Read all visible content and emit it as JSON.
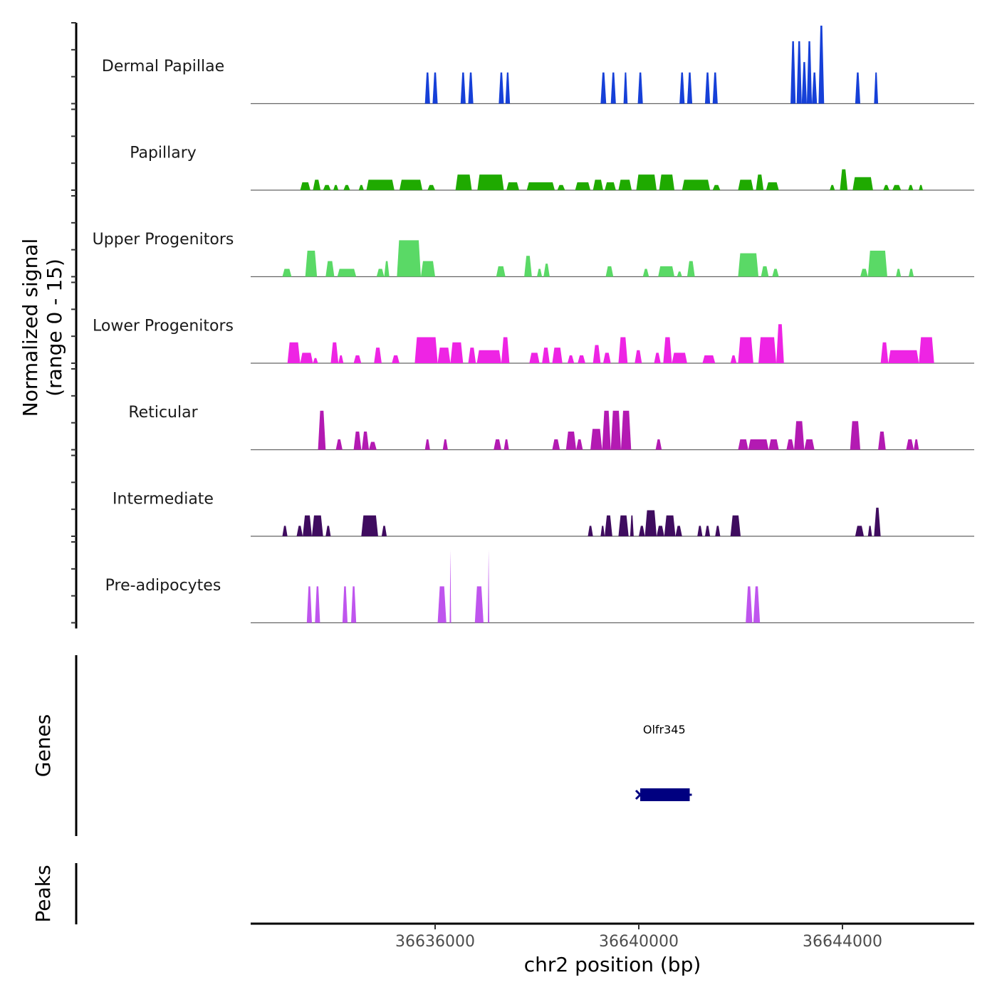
{
  "chart_data": {
    "type": "area",
    "title": "",
    "ylabel": "Normalized signal\n(range 0 - 15)",
    "ylabel_lines": [
      "Normalized signal",
      "(range 0 - 15)"
    ],
    "xlabel": "chr2 position (bp)",
    "chromosome": "chr2",
    "xlim": [
      36632380,
      36646590
    ],
    "ylim": [
      0,
      15
    ],
    "x_ticks": [
      36636000,
      36640000,
      36644000
    ],
    "x_tick_labels": [
      "36636000",
      "36640000",
      "36644000"
    ],
    "y_ticks_per_track": [
      0,
      5,
      10,
      15
    ],
    "grid": false,
    "legend": "none",
    "tracks": [
      {
        "name": "Dermal Papillae",
        "color": "#1640d8",
        "peaks": [
          [
            36635800,
            36635900,
            6
          ],
          [
            36635950,
            36636050,
            6
          ],
          [
            36636500,
            36636600,
            6
          ],
          [
            36636650,
            36636750,
            6
          ],
          [
            36637250,
            36637350,
            6
          ],
          [
            36637380,
            36637470,
            6
          ],
          [
            36639250,
            36639360,
            6
          ],
          [
            36639450,
            36639550,
            6
          ],
          [
            36639700,
            36639780,
            6
          ],
          [
            36639980,
            36640080,
            6
          ],
          [
            36640800,
            36640900,
            6
          ],
          [
            36640950,
            36641050,
            6
          ],
          [
            36641300,
            36641400,
            6
          ],
          [
            36641450,
            36641550,
            6
          ],
          [
            36642980,
            36643080,
            12
          ],
          [
            36643100,
            36643200,
            12
          ],
          [
            36643200,
            36643300,
            8
          ],
          [
            36643300,
            36643400,
            12
          ],
          [
            36643400,
            36643500,
            6
          ],
          [
            36643530,
            36643640,
            15
          ],
          [
            36644250,
            36644350,
            6
          ],
          [
            36644620,
            36644700,
            6
          ]
        ]
      },
      {
        "name": "Papillary",
        "color": "#1faa00",
        "peaks": [
          [
            36633350,
            36633550,
            1.5
          ],
          [
            36633600,
            36633750,
            2
          ],
          [
            36633800,
            36633950,
            1
          ],
          [
            36634000,
            36634100,
            1
          ],
          [
            36634200,
            36634330,
            1
          ],
          [
            36634500,
            36634600,
            1
          ],
          [
            36634650,
            36635200,
            2
          ],
          [
            36635300,
            36635750,
            2
          ],
          [
            36635850,
            36636000,
            1
          ],
          [
            36636400,
            36636720,
            3
          ],
          [
            36636830,
            36637350,
            3
          ],
          [
            36637400,
            36637650,
            1.5
          ],
          [
            36637800,
            36638350,
            1.5
          ],
          [
            36638400,
            36638550,
            1
          ],
          [
            36638750,
            36639050,
            1.5
          ],
          [
            36639100,
            36639300,
            2
          ],
          [
            36639330,
            36639550,
            1.5
          ],
          [
            36639600,
            36639860,
            2
          ],
          [
            36639950,
            36640350,
            3
          ],
          [
            36640400,
            36640700,
            3
          ],
          [
            36640850,
            36641400,
            2
          ],
          [
            36641450,
            36641600,
            1
          ],
          [
            36641950,
            36642250,
            2
          ],
          [
            36642300,
            36642450,
            3
          ],
          [
            36642500,
            36642750,
            1.5
          ],
          [
            36643750,
            36643850,
            1
          ],
          [
            36643950,
            36644100,
            4
          ],
          [
            36644200,
            36644600,
            2.5
          ],
          [
            36644800,
            36644920,
            1
          ],
          [
            36644980,
            36645150,
            1
          ],
          [
            36645290,
            36645390,
            1
          ],
          [
            36645500,
            36645580,
            1
          ]
        ]
      },
      {
        "name": "Upper Progenitors",
        "color": "#5ad966",
        "peaks": [
          [
            36633000,
            36633180,
            1.5
          ],
          [
            36633450,
            36633680,
            5
          ],
          [
            36633850,
            36634020,
            3
          ],
          [
            36634080,
            36634450,
            1.5
          ],
          [
            36634850,
            36635000,
            1.5
          ],
          [
            36635000,
            36635100,
            3
          ],
          [
            36635250,
            36635720,
            7
          ],
          [
            36635720,
            36636000,
            3
          ],
          [
            36637200,
            36637380,
            2
          ],
          [
            36637750,
            36637900,
            4
          ],
          [
            36638000,
            36638100,
            1.5
          ],
          [
            36638130,
            36638250,
            2.5
          ],
          [
            36639350,
            36639500,
            2
          ],
          [
            36640080,
            36640200,
            1.5
          ],
          [
            36640380,
            36640700,
            2
          ],
          [
            36640750,
            36640850,
            1
          ],
          [
            36640950,
            36641100,
            3
          ],
          [
            36641950,
            36642350,
            4.5
          ],
          [
            36642400,
            36642550,
            2
          ],
          [
            36642620,
            36642750,
            1.5
          ],
          [
            36644350,
            36644500,
            1.5
          ],
          [
            36644500,
            36644880,
            5
          ],
          [
            36645050,
            36645150,
            1.5
          ],
          [
            36645300,
            36645400,
            1.5
          ]
        ]
      },
      {
        "name": "Lower Progenitors",
        "color": "#ee24e4",
        "peaks": [
          [
            36633100,
            36633350,
            4
          ],
          [
            36633350,
            36633600,
            2
          ],
          [
            36633600,
            36633700,
            1
          ],
          [
            36633950,
            36634100,
            4
          ],
          [
            36634100,
            36634200,
            1.5
          ],
          [
            36634400,
            36634550,
            1.5
          ],
          [
            36634800,
            36634950,
            3
          ],
          [
            36635150,
            36635300,
            1.5
          ],
          [
            36635600,
            36636050,
            5
          ],
          [
            36636050,
            36636300,
            3
          ],
          [
            36636300,
            36636550,
            4
          ],
          [
            36636650,
            36636800,
            3
          ],
          [
            36636820,
            36637300,
            2.5
          ],
          [
            36637300,
            36637460,
            5
          ],
          [
            36637850,
            36638050,
            2
          ],
          [
            36638100,
            36638250,
            3
          ],
          [
            36638300,
            36638500,
            3
          ],
          [
            36638600,
            36638730,
            1.5
          ],
          [
            36638800,
            36638950,
            1.5
          ],
          [
            36639100,
            36639250,
            3.5
          ],
          [
            36639300,
            36639450,
            2
          ],
          [
            36639600,
            36639780,
            5
          ],
          [
            36639920,
            36640060,
            2.5
          ],
          [
            36640300,
            36640430,
            2
          ],
          [
            36640480,
            36640650,
            5
          ],
          [
            36640650,
            36640950,
            2
          ],
          [
            36641250,
            36641500,
            1.5
          ],
          [
            36641800,
            36641920,
            1.5
          ],
          [
            36641950,
            36642250,
            5
          ],
          [
            36642350,
            36642700,
            5
          ],
          [
            36642700,
            36642850,
            7.5
          ],
          [
            36644750,
            36644900,
            4
          ],
          [
            36644900,
            36645500,
            2.5
          ],
          [
            36645500,
            36645800,
            5
          ]
        ]
      },
      {
        "name": "Reticular",
        "color": "#b31ab2",
        "peaks": [
          [
            36633700,
            36633850,
            7.5
          ],
          [
            36634050,
            36634180,
            2
          ],
          [
            36634400,
            36634550,
            3.5
          ],
          [
            36634560,
            36634700,
            3.5
          ],
          [
            36634700,
            36634850,
            1.5
          ],
          [
            36635800,
            36635900,
            2
          ],
          [
            36636150,
            36636250,
            2
          ],
          [
            36637150,
            36637300,
            2
          ],
          [
            36637350,
            36637450,
            2
          ],
          [
            36638300,
            36638450,
            2
          ],
          [
            36638570,
            36638770,
            3.5
          ],
          [
            36638770,
            36638900,
            2
          ],
          [
            36639050,
            36639280,
            4
          ],
          [
            36639280,
            36639450,
            7.5
          ],
          [
            36639450,
            36639650,
            7.5
          ],
          [
            36639650,
            36639850,
            7.5
          ],
          [
            36640330,
            36640450,
            2
          ],
          [
            36641950,
            36642150,
            2
          ],
          [
            36642150,
            36642550,
            2
          ],
          [
            36642550,
            36642750,
            2
          ],
          [
            36642900,
            36643050,
            2
          ],
          [
            36643050,
            36643250,
            5.5
          ],
          [
            36643250,
            36643450,
            2
          ],
          [
            36644150,
            36644350,
            5.5
          ],
          [
            36644700,
            36644850,
            3.5
          ],
          [
            36645250,
            36645400,
            2
          ],
          [
            36645400,
            36645500,
            2
          ]
        ]
      },
      {
        "name": "Intermediate",
        "color": "#3f0c5f",
        "peaks": [
          [
            36633000,
            36633100,
            2
          ],
          [
            36633280,
            36633400,
            2
          ],
          [
            36633400,
            36633580,
            4
          ],
          [
            36633580,
            36633800,
            4
          ],
          [
            36633850,
            36633950,
            2
          ],
          [
            36634550,
            36634880,
            4
          ],
          [
            36634950,
            36635050,
            2
          ],
          [
            36639000,
            36639100,
            2
          ],
          [
            36639250,
            36639330,
            2
          ],
          [
            36639330,
            36639480,
            4
          ],
          [
            36639600,
            36639800,
            4
          ],
          [
            36639830,
            36639900,
            4
          ],
          [
            36640000,
            36640120,
            2
          ],
          [
            36640120,
            36640350,
            5
          ],
          [
            36640350,
            36640500,
            2
          ],
          [
            36640500,
            36640720,
            4
          ],
          [
            36640720,
            36640850,
            2
          ],
          [
            36641150,
            36641250,
            2
          ],
          [
            36641300,
            36641400,
            2
          ],
          [
            36641500,
            36641600,
            2
          ],
          [
            36641800,
            36642000,
            4
          ],
          [
            36644250,
            36644420,
            2
          ],
          [
            36644500,
            36644580,
            2
          ],
          [
            36644620,
            36644750,
            5.5
          ]
        ]
      },
      {
        "name": "Pre-adipocytes",
        "color": "#bf55ee",
        "peaks": [
          [
            36633480,
            36633580,
            7
          ],
          [
            36633640,
            36633740,
            7
          ],
          [
            36634180,
            36634280,
            7
          ],
          [
            36634350,
            36634450,
            7
          ],
          [
            36636050,
            36636220,
            7
          ],
          [
            36636300,
            36636300,
            14
          ],
          [
            36636780,
            36636950,
            7
          ],
          [
            36637050,
            36637050,
            14
          ],
          [
            36642100,
            36642230,
            7
          ],
          [
            36642250,
            36642380,
            7
          ]
        ]
      }
    ],
    "genes": [
      {
        "name": "Olfr345",
        "start": 36640000,
        "end": 36641000,
        "strand": "-",
        "color": "#000080"
      }
    ],
    "panel_labels": {
      "genes": "Genes",
      "peaks": "Peaks"
    }
  }
}
